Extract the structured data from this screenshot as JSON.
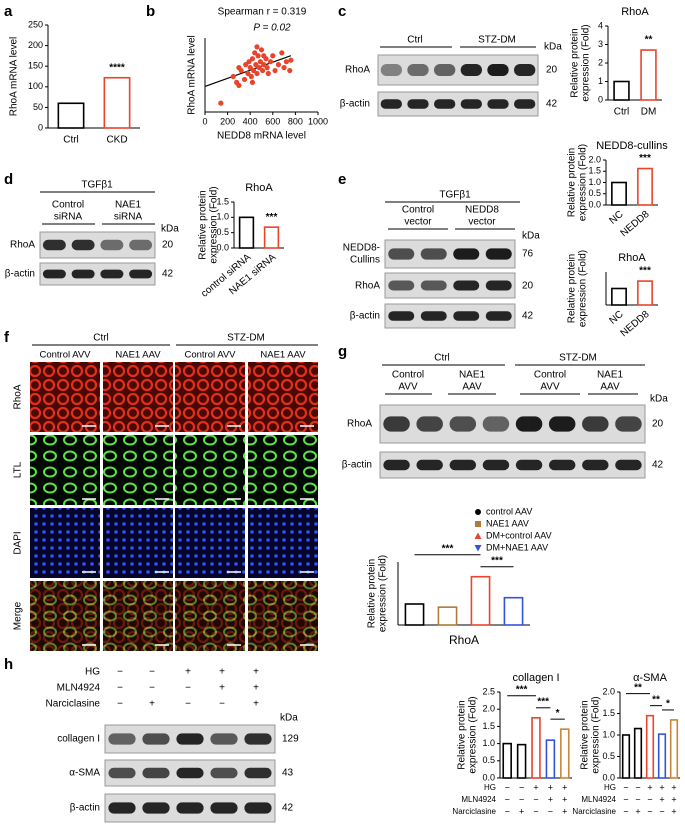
{
  "panel_labels": [
    "a",
    "b",
    "c",
    "d",
    "e",
    "f",
    "g",
    "h"
  ],
  "blots": [
    {
      "groups": [
        "Ctrl",
        "STZ-DM"
      ],
      "unit": "kDa",
      "rows": [
        {
          "protein": "RhoA",
          "kDa": 20
        },
        {
          "protein": "β-actin",
          "kDa": 42
        }
      ]
    },
    {
      "treatment": "TGFβ1",
      "lanes": [
        [
          "Control",
          "siRNA"
        ],
        [
          "NAE1",
          "siRNA"
        ]
      ],
      "unit": "kDa",
      "rows": [
        {
          "protein": "RhoA",
          "kDa": 20
        },
        {
          "protein": "β-actin",
          "kDa": 42
        }
      ]
    },
    {
      "treatment": "TGFβ1",
      "lanes": [
        [
          "Control",
          "vector"
        ],
        [
          "NEDD8",
          "vector"
        ]
      ],
      "unit": "kDa",
      "rows": [
        {
          "protein": [
            "NEDD8-",
            "Cullins"
          ],
          "kDa": 76
        },
        {
          "protein": "RhoA",
          "kDa": 20
        },
        {
          "protein": "β-actin",
          "kDa": 42
        }
      ]
    },
    {
      "groups": [
        "Ctrl",
        "STZ-DM"
      ],
      "lanes": [
        [
          "Control",
          "AVV"
        ],
        [
          "NAE1",
          "AAV"
        ],
        [
          "Control",
          "AVV"
        ],
        [
          "NAE1",
          "AAV"
        ]
      ],
      "unit": "kDa",
      "rows": [
        {
          "protein": "RhoA",
          "kDa": 20
        },
        {
          "protein": "β-actin",
          "kDa": 42
        }
      ]
    },
    {
      "conditions": [
        {
          "name": "HG",
          "signs": [
            "−",
            "−",
            "+",
            "+",
            "+"
          ]
        },
        {
          "name": "MLN4924",
          "signs": [
            "−",
            "−",
            "−",
            "+",
            "+"
          ]
        },
        {
          "name": "Narciclasine",
          "signs": [
            "−",
            "+",
            "−",
            "−",
            "+"
          ]
        }
      ],
      "unit": "kDa",
      "rows": [
        {
          "protein": "collagen I",
          "kDa": 129
        },
        {
          "protein": "α-SMA",
          "kDa": 43
        },
        {
          "protein": "β-actin",
          "kDa": 42
        }
      ]
    }
  ],
  "microscopy": {
    "groups": [
      "Ctrl",
      "STZ-DM"
    ],
    "columns": [
      "Control AVV",
      "NAE1 AAV",
      "Control AVV",
      "NAE1 AAV"
    ],
    "rows": [
      "RhoA",
      "LTL",
      "DAPI",
      "Merge"
    ]
  },
  "chart_data": [
    {
      "type": "bar",
      "ylabel": "RhoA mRNA level",
      "categories": [
        "Ctrl",
        "CKD"
      ],
      "values": [
        60,
        122
      ],
      "colors": [
        "#000000",
        "#e8452c"
      ],
      "ylim": [
        0,
        250
      ],
      "yticks": [
        0,
        50,
        100,
        150,
        200,
        250
      ],
      "significance": [
        null,
        "****"
      ]
    },
    {
      "type": "scatter",
      "xlabel": "NEDD8 mRNA level",
      "ylabel": "RhoA mRNA level",
      "annotations": [
        "Spearman r = 0.319",
        "P = 0.02"
      ],
      "color": "#e8452c",
      "x": [
        140,
        250,
        280,
        300,
        320,
        350,
        360,
        380,
        390,
        400,
        410,
        420,
        430,
        440,
        450,
        460,
        470,
        480,
        490,
        500,
        510,
        520,
        540,
        550,
        560,
        580,
        600,
        620,
        650,
        680,
        700,
        720,
        750,
        760,
        300,
        420,
        460,
        520
      ],
      "values": [
        30,
        120,
        100,
        150,
        140,
        110,
        160,
        130,
        170,
        150,
        120,
        180,
        140,
        200,
        160,
        130,
        190,
        150,
        170,
        210,
        140,
        160,
        180,
        150,
        130,
        170,
        190,
        140,
        160,
        200,
        150,
        170,
        140,
        175,
        90,
        100,
        220,
        190
      ],
      "xlim": [
        0,
        1000
      ],
      "xticks": [
        0,
        200,
        400,
        600,
        800,
        1000
      ],
      "ylim": [
        0,
        250
      ]
    },
    {
      "type": "bar",
      "title": "RhoA",
      "ylabel": [
        "Relative protein",
        "expression (Fold)"
      ],
      "categories": [
        "Ctrl",
        "DM"
      ],
      "values": [
        1.0,
        2.7
      ],
      "colors": [
        "#000000",
        "#e8452c"
      ],
      "ylim": [
        0,
        4
      ],
      "yticks": [
        0,
        1,
        2,
        3,
        4
      ],
      "significance": [
        null,
        "**"
      ]
    },
    {
      "type": "bar",
      "title": "RhoA",
      "ylabel": [
        "Relative protein",
        "expression (Fold)"
      ],
      "categories": [
        "control siRNA",
        "NAE1 siRNA"
      ],
      "values": [
        1.0,
        0.68
      ],
      "colors": [
        "#000000",
        "#e8452c"
      ],
      "ylim": [
        0,
        1.5
      ],
      "yticks": [
        {
          "value": 0,
          "label": "0.0"
        },
        0.5,
        {
          "value": 1,
          "label": "1.0"
        },
        1.5
      ],
      "significance": [
        null,
        "***"
      ]
    },
    {
      "type": "bar",
      "title": "NEDD8-cullins",
      "ylabel": [
        "Relative protein",
        "expression (Fold)"
      ],
      "categories": [
        "NC",
        "NEDD8"
      ],
      "values": [
        1.0,
        1.62
      ],
      "colors": [
        "#000000",
        "#e8452c"
      ],
      "ylim": [
        0,
        2
      ],
      "yticks": [
        {
          "value": 0,
          "label": "0.0"
        },
        0.5,
        {
          "value": 1,
          "label": "1.0"
        },
        1.5,
        {
          "value": 2,
          "label": "2.0"
        }
      ],
      "significance": [
        null,
        "***"
      ]
    },
    {
      "type": "bar",
      "title": "RhoA",
      "ylabel": [
        "Relative protein",
        "expression (Fold)"
      ],
      "categories": [
        "NC",
        "NEDD8"
      ],
      "values": [
        1.0,
        1.45
      ],
      "colors": [
        "#000000",
        "#e8452c"
      ],
      "ylim": [
        0,
        2
      ],
      "significance": [
        null,
        "***"
      ]
    },
    {
      "type": "bar",
      "ylabel": [
        "Relative protein",
        "expression (Fold)"
      ],
      "categories": [
        "RhoA"
      ],
      "ylim": [
        0,
        3
      ],
      "series": [
        {
          "name": "control AAV",
          "color": "#000000",
          "marker": "circle",
          "values": [
            1.0
          ]
        },
        {
          "name": "NAE1 AAV",
          "color": "#b07a3a",
          "marker": "square",
          "values": [
            0.85
          ]
        },
        {
          "name": "DM+control AAV",
          "color": "#e8452c",
          "marker": "triangle-up",
          "values": [
            2.3
          ]
        },
        {
          "name": "DM+NAE1 AAV",
          "color": "#3355dd",
          "marker": "triangle-down",
          "values": [
            1.3
          ]
        }
      ],
      "brackets": [
        {
          "from": 0,
          "to": 2,
          "text": "***"
        },
        {
          "from": 2,
          "to": 3,
          "text": "***"
        }
      ]
    },
    {
      "type": "bar",
      "title": "collagen I",
      "ylabel": [
        "Relative protein",
        "expression (Fold)"
      ],
      "values": [
        1.0,
        0.97,
        1.75,
        1.1,
        1.42
      ],
      "colors": [
        "#000000",
        "#000000",
        "#e8452c",
        "#3355dd",
        "#c8863a"
      ],
      "ylim": [
        0,
        2.5
      ],
      "yticks": [
        {
          "value": 0,
          "label": "0.0"
        },
        0.5,
        {
          "value": 1,
          "label": "1.0"
        },
        1.5,
        {
          "value": 2,
          "label": "2.0"
        },
        2.5
      ],
      "brackets": [
        {
          "from": 0,
          "to": 2,
          "text": "***"
        },
        {
          "from": 2,
          "to": 3,
          "text": "***"
        },
        {
          "from": 3,
          "to": 4,
          "text": "*"
        }
      ],
      "conditions": [
        {
          "name": "HG",
          "signs": [
            "−",
            "−",
            "+",
            "+",
            "+"
          ]
        },
        {
          "name": "MLN4924",
          "signs": [
            "−",
            "−",
            "−",
            "+",
            "+"
          ]
        },
        {
          "name": "Narciclasine",
          "signs": [
            "−",
            "+",
            "−",
            "−",
            "+"
          ]
        }
      ]
    },
    {
      "type": "bar",
      "title": "α-SMA",
      "ylabel": [
        "Relative protein",
        "expression (Fold)"
      ],
      "values": [
        1.0,
        1.15,
        1.45,
        1.02,
        1.35
      ],
      "colors": [
        "#000000",
        "#000000",
        "#e8452c",
        "#3355dd",
        "#c8863a"
      ],
      "ylim": [
        0,
        2
      ],
      "yticks": [
        {
          "value": 0,
          "label": "0.0"
        },
        0.5,
        {
          "value": 1,
          "label": "1.0"
        },
        1.5,
        {
          "value": 2,
          "label": "2.0"
        }
      ],
      "brackets": [
        {
          "from": 0,
          "to": 2,
          "text": "**"
        },
        {
          "from": 2,
          "to": 3,
          "text": "**"
        },
        {
          "from": 3,
          "to": 4,
          "text": "*"
        }
      ],
      "conditions": [
        {
          "name": "HG",
          "signs": [
            "−",
            "−",
            "+",
            "+",
            "+"
          ]
        },
        {
          "name": "MLN4924",
          "signs": [
            "−",
            "−",
            "−",
            "+",
            "+"
          ]
        },
        {
          "name": "Narciclasine",
          "signs": [
            "−",
            "+",
            "−",
            "−",
            "+"
          ]
        }
      ]
    }
  ]
}
